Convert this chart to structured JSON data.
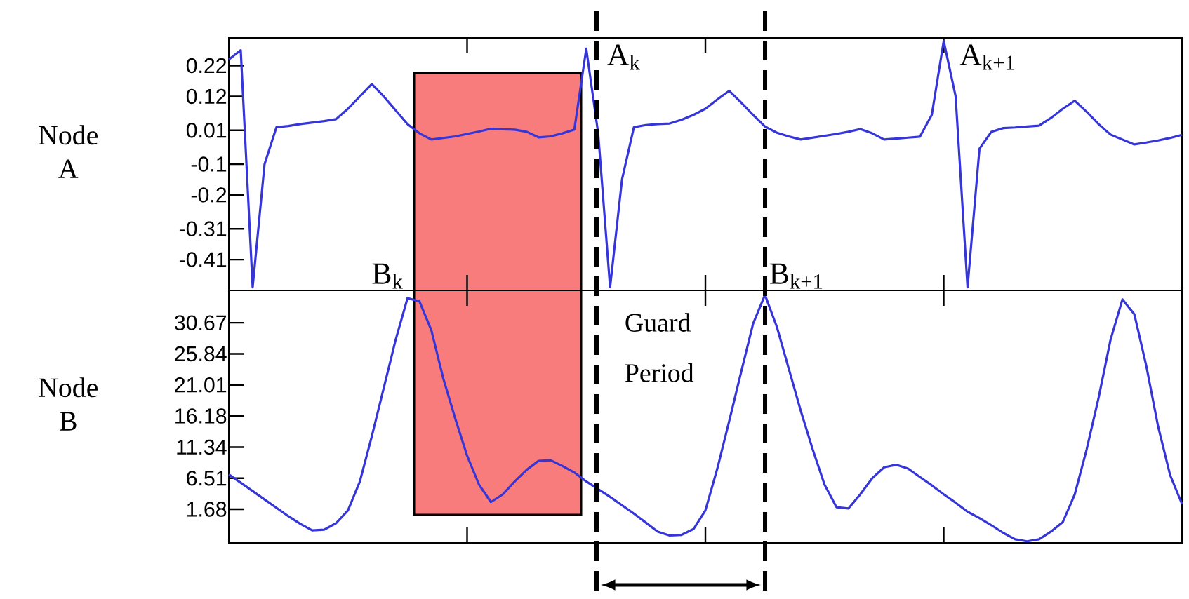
{
  "chart_data": [
    {
      "type": "line",
      "ylabel": "Node A",
      "tick_labels": "y",
      "ylim": [
        -0.51,
        0.31
      ],
      "yticks": [
        0.22,
        0.12,
        0.01,
        -0.1,
        -0.2,
        -0.31,
        -0.41
      ],
      "categories": [
        null,
        null,
        null,
        null,
        null,
        null,
        null,
        null,
        null,
        null,
        null,
        null,
        null,
        null,
        null,
        null,
        null,
        null,
        null,
        null,
        null,
        null,
        null,
        null,
        null,
        null,
        null,
        null,
        null,
        null,
        null,
        null,
        null,
        null,
        null,
        null,
        null,
        null,
        null,
        null,
        null,
        null,
        null,
        null,
        null,
        null,
        null,
        null,
        null,
        null,
        null,
        null,
        null,
        null,
        null,
        null,
        null,
        null,
        null,
        null,
        null,
        null,
        null,
        null,
        null,
        null,
        null,
        null,
        null,
        null,
        null,
        null,
        null,
        null,
        null,
        null,
        null,
        null,
        null,
        null,
        null
      ],
      "series": [
        {
          "color": "#3535d8",
          "values": [
            0.24,
            0.27,
            -0.5,
            -0.1,
            0.02,
            0.024,
            0.03,
            0.035,
            0.04,
            0.046,
            0.08,
            0.12,
            0.16,
            0.12,
            0.075,
            0.03,
            0.0,
            -0.02,
            -0.015,
            -0.01,
            -0.002,
            0.006,
            0.015,
            0.013,
            0.012,
            0.005,
            -0.013,
            -0.01,
            0.0,
            0.012,
            0.275,
            0.0,
            -0.5,
            -0.15,
            0.02,
            0.027,
            0.03,
            0.032,
            0.044,
            0.06,
            0.08,
            0.11,
            0.138,
            0.1,
            0.06,
            0.022,
            0.002,
            -0.01,
            -0.02,
            -0.014,
            -0.008,
            -0.002,
            0.005,
            0.014,
            0.0,
            -0.02,
            -0.017,
            -0.014,
            -0.011,
            0.06,
            0.3,
            0.12,
            -0.5,
            -0.05,
            0.005,
            0.017,
            0.019,
            0.022,
            0.025,
            0.05,
            0.08,
            0.106,
            0.07,
            0.03,
            -0.004,
            -0.02,
            -0.036,
            -0.03,
            -0.023,
            -0.015,
            -0.005
          ]
        }
      ],
      "annotations": [
        "A$_{k}$",
        "A$_{k+1}$"
      ]
    },
    {
      "type": "line",
      "ylabel": "Node B",
      "tick_labels": "y",
      "ylim": [
        -3.55,
        35.7
      ],
      "yticks": [
        30.67,
        25.84,
        21.01,
        16.18,
        11.34,
        6.51,
        1.68
      ],
      "categories": [
        null,
        null,
        null,
        null,
        null,
        null,
        null,
        null,
        null,
        null,
        null,
        null,
        null,
        null,
        null,
        null,
        null,
        null,
        null,
        null,
        null,
        null,
        null,
        null,
        null,
        null,
        null,
        null,
        null,
        null,
        null,
        null,
        null,
        null,
        null,
        null,
        null,
        null,
        null,
        null,
        null,
        null,
        null,
        null,
        null,
        null,
        null,
        null,
        null,
        null,
        null,
        null,
        null,
        null,
        null,
        null,
        null,
        null,
        null,
        null,
        null,
        null,
        null,
        null,
        null,
        null,
        null,
        null,
        null,
        null,
        null,
        null,
        null,
        null,
        null,
        null,
        null,
        null,
        null,
        null,
        null
      ],
      "series": [
        {
          "color": "#3535d8",
          "values": [
            7.1,
            5.8,
            4.5,
            3.2,
            1.9,
            0.6,
            -0.6,
            -1.6,
            -1.5,
            -0.5,
            1.5,
            6,
            13,
            20.5,
            28,
            34.5,
            34,
            29.5,
            22,
            15.8,
            10,
            5.5,
            2.8,
            4,
            6,
            7.8,
            9.2,
            9.3,
            8.4,
            7.4,
            6,
            4.8,
            3.6,
            2.3,
            1,
            -0.4,
            -1.8,
            -2.4,
            -2.3,
            -1.4,
            1.5,
            8,
            15.4,
            23,
            30.5,
            35,
            30,
            23.5,
            17,
            11,
            5.5,
            2,
            1.8,
            4,
            6.5,
            8.2,
            8.6,
            8,
            6.7,
            5.4,
            4,
            2.7,
            1.3,
            0.3,
            -0.8,
            -2,
            -3,
            -3.3,
            -3,
            -1.8,
            -0.3,
            4,
            11,
            19,
            28,
            34.3,
            32,
            24,
            14.5,
            7,
            2.5
          ]
        }
      ],
      "annotations": [
        "B$_{k}$",
        "B$_{k+1}$",
        "Guard Period"
      ]
    }
  ]
}
